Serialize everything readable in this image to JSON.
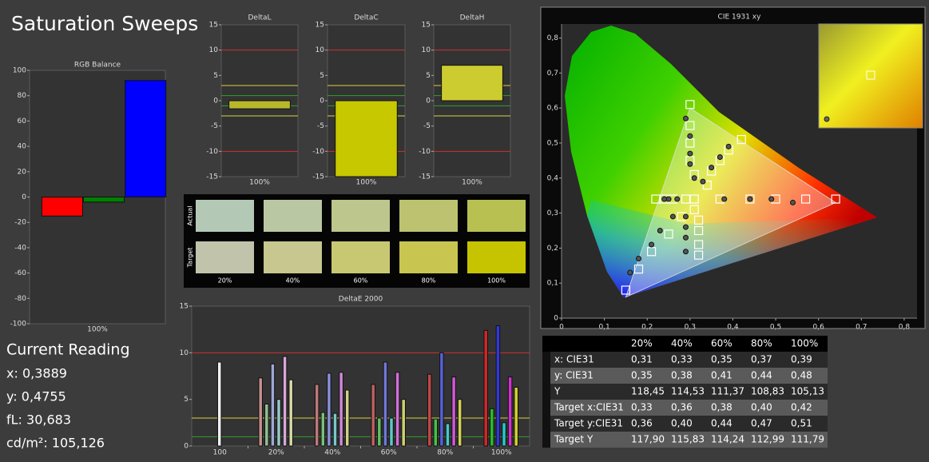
{
  "title": "Saturation Sweeps",
  "current_reading": {
    "title": "Current Reading",
    "lines": [
      "x: 0,3889",
      "y: 0,4755",
      "fL: 30,683",
      "cd/m²: 105,126"
    ]
  },
  "swatches": {
    "row_labels": [
      "Actual",
      "Target"
    ],
    "columns": [
      "20%",
      "40%",
      "60%",
      "80%",
      "100%"
    ],
    "actual": [
      "#b4c8b6",
      "#bac7a3",
      "#bdc68c",
      "#bcc270",
      "#b9c052"
    ],
    "target": [
      "#c2c3ab",
      "#c7c78f",
      "#c9c872",
      "#c8c650",
      "#c6c300"
    ]
  },
  "table": {
    "header": [
      "20%",
      "40%",
      "60%",
      "80%",
      "100%"
    ],
    "rows": [
      [
        "x: CIE31",
        "0,31",
        "0,33",
        "0,35",
        "0,37",
        "0,39"
      ],
      [
        "y: CIE31",
        "0,35",
        "0,38",
        "0,41",
        "0,44",
        "0,48"
      ],
      [
        "Y",
        "118,45",
        "114,53",
        "111,37",
        "108,83",
        "105,13"
      ],
      [
        "Target x:CIE31",
        "0,33",
        "0,36",
        "0,38",
        "0,40",
        "0,42"
      ],
      [
        "Target y:CIE31",
        "0,36",
        "0,40",
        "0,44",
        "0,47",
        "0,51"
      ],
      [
        "Target Y",
        "117,90",
        "115,83",
        "114,24",
        "112,99",
        "111,79"
      ]
    ]
  },
  "chart_data": [
    {
      "type": "bar",
      "title": "RGB Balance",
      "categories": [
        "100%"
      ],
      "series": [
        {
          "color": "#ff0000",
          "values": [
            -15
          ]
        },
        {
          "color": "#008000",
          "values": [
            -4
          ]
        },
        {
          "color": "#0000ff",
          "values": [
            92
          ]
        }
      ],
      "ylim": [
        -100,
        100
      ],
      "yticks": [
        -100,
        -80,
        -60,
        -40,
        -20,
        0,
        20,
        40,
        60,
        80,
        100
      ]
    },
    {
      "type": "bar",
      "title": "DeltaL",
      "categories": [
        "100%"
      ],
      "values": [
        -1.6
      ],
      "color": "#b8b82a",
      "ylim": [
        -15,
        15
      ],
      "yticks": [
        -15,
        -10,
        -5,
        0,
        5,
        10,
        15
      ],
      "limits": [
        {
          "value": 10,
          "color": "#d03030"
        },
        {
          "value": -10,
          "color": "#d03030"
        },
        {
          "value": 3,
          "color": "#d8d040"
        },
        {
          "value": -3,
          "color": "#d8d040"
        },
        {
          "value": 1,
          "color": "#30a030"
        },
        {
          "value": -1,
          "color": "#30a030"
        }
      ]
    },
    {
      "type": "bar",
      "title": "DeltaC",
      "categories": [
        "100%"
      ],
      "values": [
        -15
      ],
      "color": "#c8c800",
      "ylim": [
        -15,
        15
      ],
      "yticks": [
        -15,
        -10,
        -5,
        0,
        5,
        10,
        15
      ],
      "limits": [
        {
          "value": 10,
          "color": "#d03030"
        },
        {
          "value": -10,
          "color": "#d03030"
        },
        {
          "value": 3,
          "color": "#d8d040"
        },
        {
          "value": -3,
          "color": "#d8d040"
        },
        {
          "value": 1,
          "color": "#30a030"
        },
        {
          "value": -1,
          "color": "#30a030"
        }
      ]
    },
    {
      "type": "bar",
      "title": "DeltaH",
      "categories": [
        "100%"
      ],
      "values": [
        7
      ],
      "color": "#cccc30",
      "ylim": [
        -15,
        15
      ],
      "yticks": [
        -15,
        -10,
        -5,
        0,
        5,
        10,
        15
      ],
      "limits": [
        {
          "value": 10,
          "color": "#d03030"
        },
        {
          "value": -10,
          "color": "#d03030"
        },
        {
          "value": 3,
          "color": "#d8d040"
        },
        {
          "value": -3,
          "color": "#d8d040"
        },
        {
          "value": 1,
          "color": "#30a030"
        },
        {
          "value": -1,
          "color": "#30a030"
        }
      ]
    },
    {
      "type": "grouped_bar",
      "title": "DeltaE 2000",
      "categories": [
        "100",
        "20%",
        "40%",
        "60%",
        "80%",
        "100%"
      ],
      "values": [
        [
          9.0
        ],
        [
          7.3,
          4.5,
          8.8,
          5.0,
          9.6,
          7.1
        ],
        [
          6.6,
          3.6,
          7.8,
          3.5,
          7.9,
          6.0
        ],
        [
          6.6,
          3.0,
          9.0,
          3.0,
          7.9,
          5.0
        ],
        [
          7.7,
          2.9,
          10.0,
          2.4,
          7.4,
          5.0
        ],
        [
          12.4,
          4.0,
          12.9,
          2.5,
          7.4,
          6.3
        ]
      ],
      "colors": [
        [
          "#f0f0f0"
        ],
        [
          "#c89090",
          "#90c090",
          "#a0a8d8",
          "#98c8c8",
          "#d8a8d8",
          "#d8d8a8"
        ],
        [
          "#c07878",
          "#78c078",
          "#8890d8",
          "#78c8c8",
          "#d088d8",
          "#d0d088"
        ],
        [
          "#c06060",
          "#60c060",
          "#7078d8",
          "#60c8c8",
          "#d070d8",
          "#d0d070"
        ],
        [
          "#c04848",
          "#48c048",
          "#5860d8",
          "#48c8c8",
          "#d058d8",
          "#d0d058"
        ],
        [
          "#d02828",
          "#28c028",
          "#3038d8",
          "#28c8c8",
          "#d030d0",
          "#d0d030"
        ]
      ],
      "ylim": [
        0,
        15
      ],
      "yticks": [
        0,
        5,
        10,
        15
      ],
      "limits": [
        {
          "value": 10,
          "color": "#d03030"
        },
        {
          "value": 3,
          "color": "#d8d040"
        },
        {
          "value": 1,
          "color": "#30a030"
        }
      ]
    },
    {
      "type": "scatter",
      "title": "CIE 1931 xy",
      "xlim": [
        0,
        0.83
      ],
      "ylim": [
        0,
        0.84
      ],
      "xticks": [
        0,
        {
          "value": 0.1,
          "label": "0,1"
        },
        {
          "value": 0.2,
          "label": "0,2"
        },
        {
          "value": 0.3,
          "label": "0,3"
        },
        {
          "value": 0.4,
          "label": "0,4"
        },
        {
          "value": 0.5,
          "label": "0,5"
        },
        {
          "value": 0.6,
          "label": "0,6"
        },
        {
          "value": 0.7,
          "label": "0,7"
        },
        {
          "value": 0.8,
          "label": "0,8"
        }
      ],
      "yticks": [
        0,
        {
          "value": 0.1,
          "label": "0,1"
        },
        {
          "value": 0.2,
          "label": "0,2"
        },
        {
          "value": 0.3,
          "label": "0,3"
        },
        {
          "value": 0.4,
          "label": "0,4"
        },
        {
          "value": 0.5,
          "label": "0,5"
        },
        {
          "value": 0.6,
          "label": "0,6"
        },
        {
          "value": 0.7,
          "label": "0,7"
        },
        {
          "value": 0.8,
          "label": "0,8"
        }
      ],
      "gamut": {
        "x": [
          0.64,
          0.3,
          0.15
        ],
        "y": [
          0.33,
          0.6,
          0.06
        ]
      },
      "series": [
        {
          "marker": "square",
          "color": "#ffffff",
          "x": [
            0.31,
            0.37,
            0.44,
            0.5,
            0.57,
            0.64,
            0.31,
            0.3,
            0.3,
            0.3,
            0.3,
            0.28,
            0.25,
            0.21,
            0.18,
            0.15,
            0.29,
            0.26,
            0.24,
            0.22,
            0.31,
            0.32,
            0.32,
            0.32,
            0.32,
            0.34,
            0.35,
            0.37,
            0.39,
            0.42
          ],
          "y": [
            0.34,
            0.34,
            0.34,
            0.34,
            0.34,
            0.34,
            0.41,
            0.45,
            0.5,
            0.55,
            0.61,
            0.29,
            0.24,
            0.19,
            0.14,
            0.08,
            0.34,
            0.34,
            0.34,
            0.34,
            0.31,
            0.28,
            0.25,
            0.21,
            0.18,
            0.38,
            0.42,
            0.45,
            0.48,
            0.51
          ]
        },
        {
          "marker": "circle",
          "color": "#555555",
          "x": [
            0.38,
            0.44,
            0.49,
            0.54,
            0.29,
            0.3,
            0.3,
            0.3,
            0.31,
            0.16,
            0.18,
            0.21,
            0.23,
            0.26,
            0.27,
            0.25,
            0.24,
            0.29,
            0.29,
            0.29,
            0.29,
            0.39,
            0.37,
            0.35,
            0.33
          ],
          "y": [
            0.34,
            0.34,
            0.34,
            0.33,
            0.57,
            0.52,
            0.47,
            0.44,
            0.4,
            0.13,
            0.17,
            0.21,
            0.25,
            0.29,
            0.34,
            0.34,
            0.34,
            0.19,
            0.23,
            0.26,
            0.29,
            0.49,
            0.46,
            0.43,
            0.39
          ]
        }
      ]
    }
  ]
}
